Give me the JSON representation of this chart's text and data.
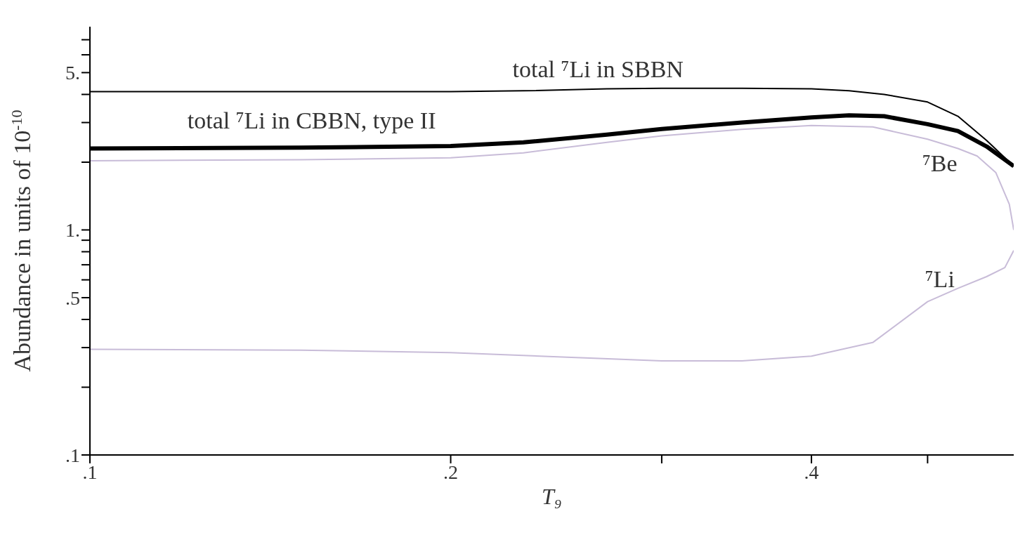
{
  "chart_data": {
    "type": "line",
    "xlabel": "T₉",
    "ylabel": "Abundance in units of 10$^{-10}$",
    "log": "xy",
    "xlim": [
      0.1,
      0.59
    ],
    "ylim": [
      0.1,
      8
    ],
    "xticks": [
      {
        "value": 0.1,
        "label": ".1"
      },
      {
        "value": 0.2,
        "label": ".2"
      },
      {
        "value": 0.3,
        "label": null
      },
      {
        "value": 0.4,
        "label": ".4"
      },
      {
        "value": 0.5,
        "label": null
      }
    ],
    "yticks": [
      {
        "value": 0.1,
        "label": ".1"
      },
      {
        "value": 0.2,
        "label": null
      },
      {
        "value": 0.3,
        "label": null
      },
      {
        "value": 0.4,
        "label": null
      },
      {
        "value": 0.5,
        "label": ".5"
      },
      {
        "value": 0.6,
        "label": null
      },
      {
        "value": 0.7,
        "label": null
      },
      {
        "value": 0.8,
        "label": null
      },
      {
        "value": 0.9,
        "label": null
      },
      {
        "value": 1,
        "label": "1."
      },
      {
        "value": 2,
        "label": null
      },
      {
        "value": 3,
        "label": null
      },
      {
        "value": 4,
        "label": null
      },
      {
        "value": 5,
        "label": "5."
      },
      {
        "value": 6,
        "label": null
      },
      {
        "value": 7,
        "label": null
      }
    ],
    "marker": "none",
    "line_style": "solid",
    "series": [
      {
        "name": "total ⁷Li in SBBN",
        "color": "#000000",
        "x": [
          0.1,
          0.15,
          0.2,
          0.23,
          0.27,
          0.3,
          0.35,
          0.4,
          0.43,
          0.46,
          0.5,
          0.53,
          0.56,
          0.59
        ],
        "values": [
          4.12,
          4.12,
          4.12,
          4.15,
          4.24,
          4.26,
          4.26,
          4.24,
          4.15,
          4.0,
          3.7,
          3.2,
          2.5,
          1.92
        ]
      },
      {
        "name": "total ⁷Li in CBBN, type II",
        "color": "#000000",
        "x": [
          0.1,
          0.15,
          0.2,
          0.23,
          0.27,
          0.3,
          0.35,
          0.4,
          0.43,
          0.46,
          0.5,
          0.53,
          0.56,
          0.59
        ],
        "values": [
          2.3,
          2.32,
          2.36,
          2.45,
          2.65,
          2.81,
          3.0,
          3.16,
          3.23,
          3.2,
          2.95,
          2.75,
          2.35,
          1.92
        ]
      },
      {
        "name": "⁷Be",
        "color": "#c8bcd8",
        "x": [
          0.1,
          0.15,
          0.2,
          0.23,
          0.27,
          0.3,
          0.35,
          0.4,
          0.45,
          0.5,
          0.53,
          0.55,
          0.57,
          0.585,
          0.59
        ],
        "values": [
          2.03,
          2.05,
          2.09,
          2.2,
          2.45,
          2.62,
          2.8,
          2.91,
          2.87,
          2.53,
          2.3,
          2.13,
          1.8,
          1.3,
          1.0
        ]
      },
      {
        "name": "⁷Li",
        "color": "#c8bcd8",
        "x": [
          0.1,
          0.15,
          0.2,
          0.25,
          0.3,
          0.35,
          0.4,
          0.45,
          0.5,
          0.53,
          0.56,
          0.58,
          0.59
        ],
        "values": [
          0.295,
          0.292,
          0.285,
          0.272,
          0.262,
          0.262,
          0.275,
          0.316,
          0.48,
          0.55,
          0.62,
          0.68,
          0.81
        ]
      }
    ]
  }
}
